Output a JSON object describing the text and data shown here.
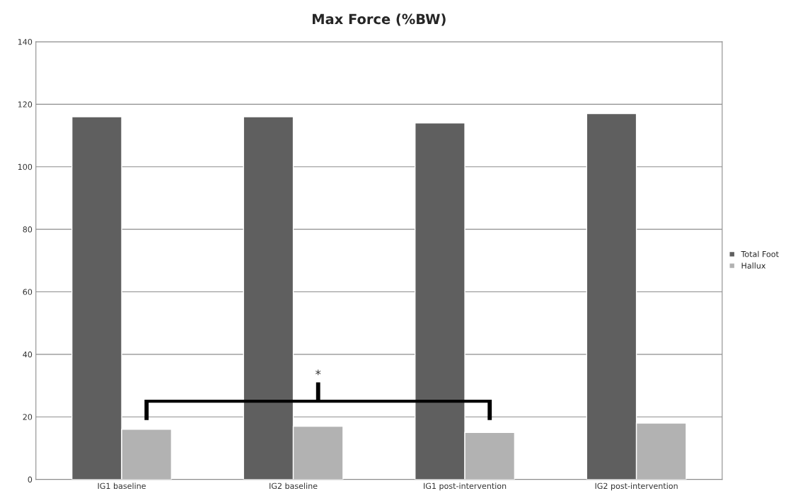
{
  "chart_data": {
    "type": "bar",
    "title": "Max Force (%BW)",
    "categories": [
      "IG1 baseline",
      "IG2 baseline",
      "IG1 post-intervention",
      "IG2 post-intervention"
    ],
    "series": [
      {
        "name": "Total Foot",
        "color": "#5f5f5f",
        "values": [
          116,
          116,
          114,
          117
        ]
      },
      {
        "name": "Hallux",
        "color": "#b2b2b2",
        "values": [
          16,
          17,
          15,
          18
        ]
      }
    ],
    "ylim": [
      0,
      140
    ],
    "yticks": [
      0,
      20,
      40,
      60,
      80,
      100,
      120,
      140
    ],
    "grid": "y",
    "legend": "right",
    "annotations": [
      "*"
    ]
  }
}
